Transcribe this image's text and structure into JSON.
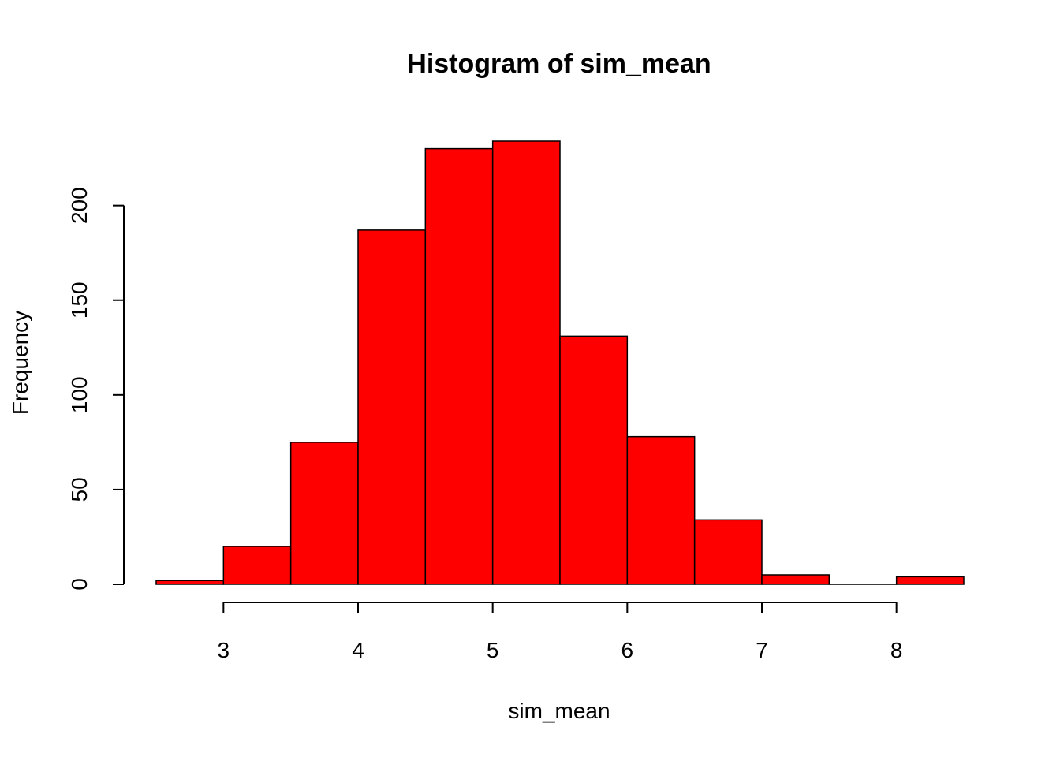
{
  "chart_data": {
    "type": "bar",
    "subtype": "histogram",
    "title": "Histogram of sim_mean",
    "xlabel": "sim_mean",
    "ylabel": "Frequency",
    "bin_edges": [
      2.5,
      3.0,
      3.5,
      4.0,
      4.5,
      5.0,
      5.5,
      6.0,
      6.5,
      7.0,
      7.5,
      8.0,
      8.5
    ],
    "values": [
      2,
      20,
      75,
      187,
      230,
      234,
      131,
      78,
      34,
      5,
      0,
      4
    ],
    "xlim": [
      2.5,
      8.5
    ],
    "ylim": [
      0,
      234
    ],
    "x_ticks": [
      3,
      4,
      5,
      6,
      7,
      8
    ],
    "y_ticks": [
      0,
      50,
      100,
      150,
      200
    ],
    "bar_color": "#ff0000",
    "border_color": "#000000",
    "grid": false,
    "legend": "none"
  }
}
